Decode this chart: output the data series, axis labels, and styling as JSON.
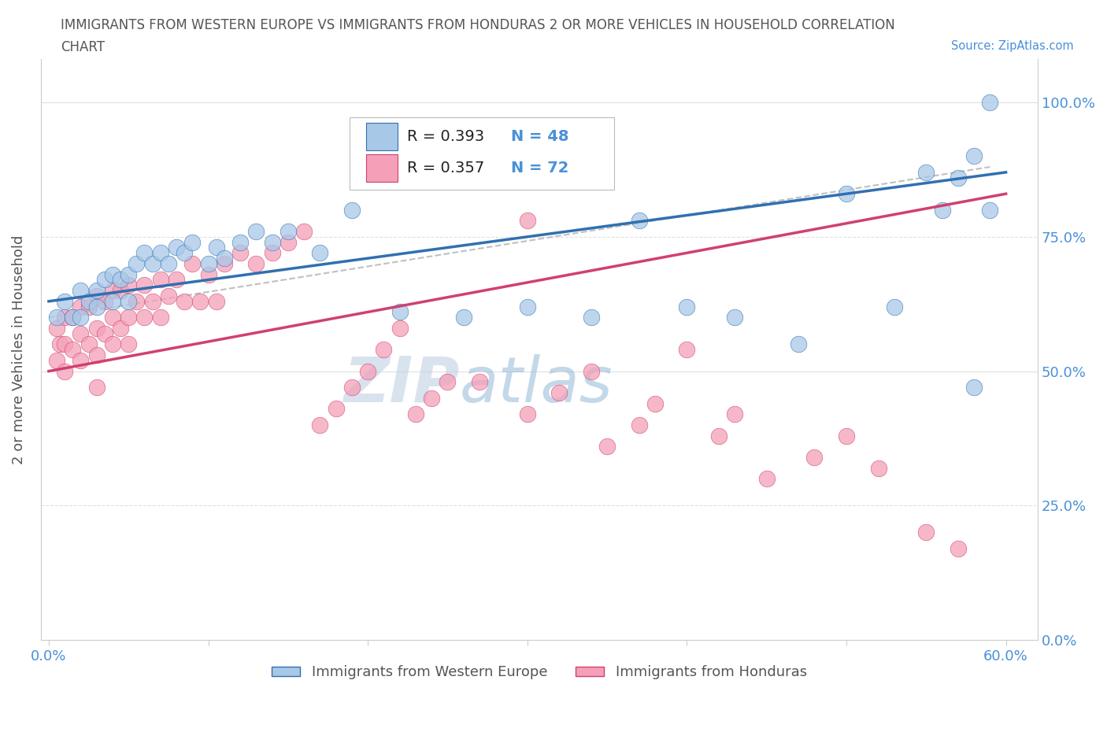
{
  "title_line1": "IMMIGRANTS FROM WESTERN EUROPE VS IMMIGRANTS FROM HONDURAS 2 OR MORE VEHICLES IN HOUSEHOLD CORRELATION",
  "title_line2": "CHART",
  "source": "Source: ZipAtlas.com",
  "ylabel": "2 or more Vehicles in Household",
  "color_blue": "#a8c8e8",
  "color_pink": "#f4a0b8",
  "line_blue": "#3070b0",
  "line_pink": "#d04070",
  "line_dashed_color": "#c0c0c0",
  "watermark_color": "#c8d8ec",
  "title_color": "#555555",
  "axis_label_color": "#555555",
  "tick_label_color": "#4a90d9",
  "grid_color": "#e0e0e0",
  "legend_R1": "R = 0.393",
  "legend_N1": "N = 48",
  "legend_R2": "R = 0.357",
  "legend_N2": "N = 72",
  "blue_x": [
    0.005,
    0.01,
    0.015,
    0.02,
    0.02,
    0.025,
    0.03,
    0.03,
    0.035,
    0.04,
    0.04,
    0.045,
    0.05,
    0.05,
    0.055,
    0.06,
    0.065,
    0.07,
    0.075,
    0.08,
    0.085,
    0.09,
    0.1,
    0.105,
    0.11,
    0.12,
    0.13,
    0.14,
    0.15,
    0.17,
    0.19,
    0.22,
    0.26,
    0.3,
    0.34,
    0.37,
    0.4,
    0.43,
    0.47,
    0.5,
    0.53,
    0.56,
    0.57,
    0.58,
    0.59,
    0.59,
    0.58,
    0.55
  ],
  "blue_y": [
    0.6,
    0.63,
    0.6,
    0.65,
    0.6,
    0.63,
    0.65,
    0.62,
    0.67,
    0.68,
    0.63,
    0.67,
    0.68,
    0.63,
    0.7,
    0.72,
    0.7,
    0.72,
    0.7,
    0.73,
    0.72,
    0.74,
    0.7,
    0.73,
    0.71,
    0.74,
    0.76,
    0.74,
    0.76,
    0.72,
    0.8,
    0.61,
    0.6,
    0.62,
    0.6,
    0.78,
    0.62,
    0.6,
    0.55,
    0.83,
    0.62,
    0.8,
    0.86,
    0.47,
    0.8,
    1.0,
    0.9,
    0.87
  ],
  "pink_x": [
    0.005,
    0.005,
    0.007,
    0.01,
    0.01,
    0.01,
    0.015,
    0.015,
    0.02,
    0.02,
    0.02,
    0.025,
    0.025,
    0.03,
    0.03,
    0.03,
    0.03,
    0.035,
    0.035,
    0.04,
    0.04,
    0.04,
    0.045,
    0.045,
    0.05,
    0.05,
    0.05,
    0.055,
    0.06,
    0.06,
    0.065,
    0.07,
    0.07,
    0.075,
    0.08,
    0.085,
    0.09,
    0.095,
    0.1,
    0.105,
    0.11,
    0.12,
    0.13,
    0.14,
    0.15,
    0.16,
    0.17,
    0.18,
    0.19,
    0.2,
    0.21,
    0.22,
    0.23,
    0.24,
    0.25,
    0.27,
    0.3,
    0.3,
    0.32,
    0.34,
    0.35,
    0.37,
    0.38,
    0.4,
    0.42,
    0.43,
    0.45,
    0.48,
    0.5,
    0.52,
    0.55,
    0.57
  ],
  "pink_y": [
    0.58,
    0.52,
    0.55,
    0.6,
    0.55,
    0.5,
    0.6,
    0.54,
    0.62,
    0.57,
    0.52,
    0.62,
    0.55,
    0.64,
    0.58,
    0.53,
    0.47,
    0.63,
    0.57,
    0.65,
    0.6,
    0.55,
    0.65,
    0.58,
    0.66,
    0.6,
    0.55,
    0.63,
    0.66,
    0.6,
    0.63,
    0.67,
    0.6,
    0.64,
    0.67,
    0.63,
    0.7,
    0.63,
    0.68,
    0.63,
    0.7,
    0.72,
    0.7,
    0.72,
    0.74,
    0.76,
    0.4,
    0.43,
    0.47,
    0.5,
    0.54,
    0.58,
    0.42,
    0.45,
    0.48,
    0.48,
    0.78,
    0.42,
    0.46,
    0.5,
    0.36,
    0.4,
    0.44,
    0.54,
    0.38,
    0.42,
    0.3,
    0.34,
    0.38,
    0.32,
    0.2,
    0.17
  ]
}
